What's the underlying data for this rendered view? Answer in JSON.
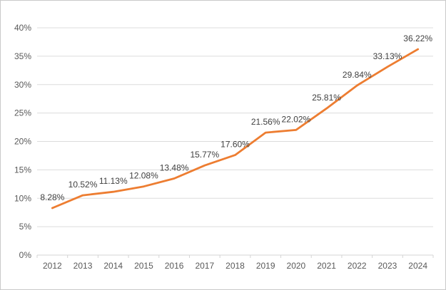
{
  "chart_data": {
    "type": "line",
    "title": "",
    "xlabel": "",
    "ylabel": "",
    "categories": [
      "2012",
      "2013",
      "2014",
      "2015",
      "2016",
      "2017",
      "2018",
      "2019",
      "2020",
      "2021",
      "2022",
      "2023",
      "2024"
    ],
    "values": [
      8.28,
      10.52,
      11.13,
      12.08,
      13.48,
      15.77,
      17.6,
      21.56,
      22.02,
      25.81,
      29.84,
      33.13,
      36.22
    ],
    "data_labels": [
      "8.28%",
      "10.52%",
      "11.13%",
      "12.08%",
      "13.48%",
      "15.77%",
      "17.60%",
      "21.56%",
      "22.02%",
      "25.81%",
      "29.84%",
      "33.13%",
      "36.22%"
    ],
    "y_ticks": [
      "0%",
      "5%",
      "10%",
      "15%",
      "20%",
      "25%",
      "30%",
      "35%",
      "40%"
    ],
    "y_tick_values": [
      0,
      5,
      10,
      15,
      20,
      25,
      30,
      35,
      40
    ],
    "ylim": [
      0,
      40
    ],
    "grid": "horizontal",
    "legend_position": "none",
    "colors": {
      "series_line": "#ED7D31",
      "gridline": "#DCDCDC",
      "axis_line": "#D4D4D4",
      "axis_label": "#595959",
      "data_label": "#3F3F3F",
      "background": "#FFFFFF",
      "frame_border": "#C9C9C9"
    }
  }
}
